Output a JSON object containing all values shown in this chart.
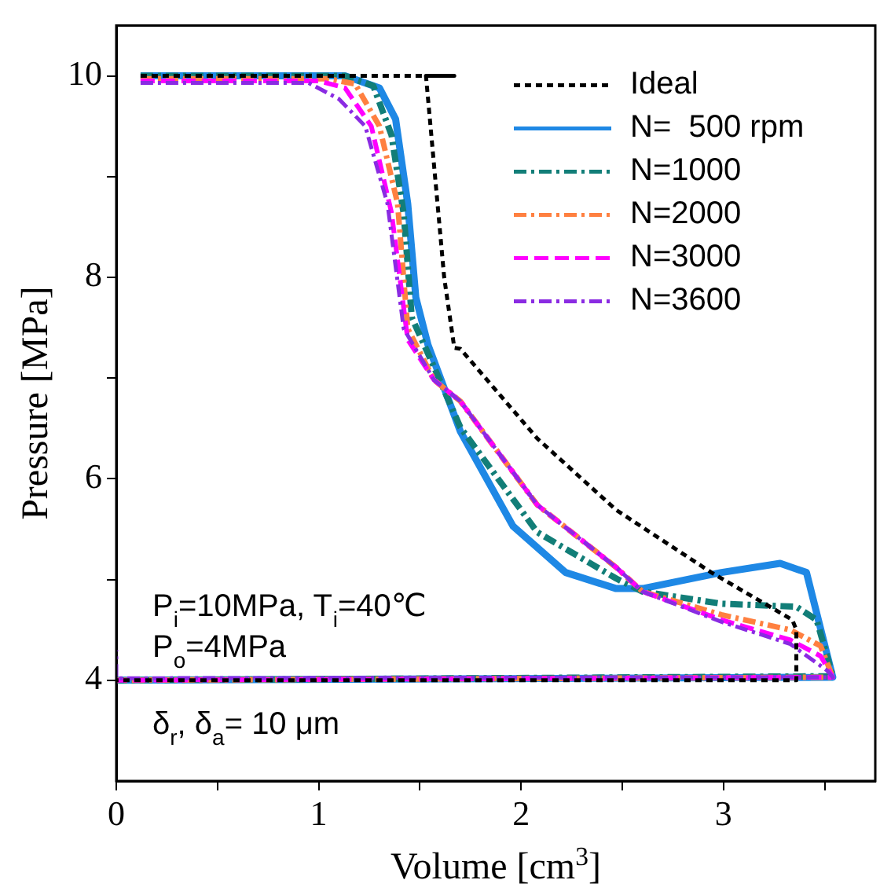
{
  "chart_data": {
    "type": "line",
    "xlabel": "Volume [cm$^{3}$]",
    "ylabel": "Pressure [MPa]",
    "xlim": [
      0,
      3.75
    ],
    "xticks": [
      0,
      {
        "value": 0.5,
        "label": null
      },
      1,
      {
        "value": 1.5,
        "label": null
      },
      2,
      {
        "value": 2.5,
        "label": null
      },
      3,
      {
        "value": 3.5,
        "label": null
      }
    ],
    "ylim": [
      3,
      10.5
    ],
    "yticks": [
      4,
      {
        "value": 5,
        "label": null
      },
      6,
      {
        "value": 7,
        "label": null
      },
      8,
      {
        "value": 9,
        "label": null
      },
      10
    ],
    "grid": false,
    "legend": "top right",
    "marker": "none",
    "annotations": [
      "P$_{i}$=10MPa, T$_{i}$=40℃",
      "P$_{o}$=4MPa",
      "δ$_{r}$, δ$_{a}$= 10 μm"
    ],
    "series": [
      {
        "name": "Ideal",
        "color": "#000000",
        "line_style": "dotted",
        "x": [
          0.12,
          1.53,
          1.67,
          1.53,
          1.62,
          1.67,
          1.7,
          2.08,
          2.47,
          2.94,
          3.34,
          3.36,
          3.36,
          0
        ],
        "values": [
          10,
          10,
          10,
          10,
          8,
          7.3,
          7.29,
          6.4,
          5.69,
          5.07,
          4.6,
          4.5,
          4,
          4
        ]
      },
      {
        "name": "N=  500 rpm",
        "color": "#1e88e5",
        "line_style": "solid",
        "x": [
          0.12,
          1.13,
          1.3,
          1.38,
          1.44,
          1.48,
          1.54,
          1.7,
          1.96,
          2.22,
          2.47,
          2.6,
          2.99,
          3.28,
          3.41,
          3.54,
          0
        ],
        "values": [
          10,
          10,
          9.88,
          9.57,
          8.73,
          7.8,
          7.33,
          6.47,
          5.53,
          5.07,
          4.91,
          4.91,
          5.07,
          5.16,
          5.07,
          4.03,
          4
        ]
      },
      {
        "name": "N=1000",
        "color": "#127e78",
        "line_style": "dashdot",
        "x": [
          0.12,
          1.13,
          1.27,
          1.36,
          1.42,
          1.46,
          1.55,
          1.7,
          2.08,
          2.47,
          2.6,
          2.99,
          3.36,
          3.46,
          3.54,
          0
        ],
        "values": [
          10,
          10,
          9.9,
          9.41,
          8.63,
          7.6,
          7.2,
          6.51,
          5.47,
          5.01,
          4.88,
          4.76,
          4.73,
          4.6,
          4.04,
          4
        ]
      },
      {
        "name": "N=2000",
        "color": "#ff8040",
        "line_style": "dashdot",
        "x": [
          0.12,
          1.05,
          1.18,
          1.3,
          1.39,
          1.44,
          1.57,
          1.7,
          2.08,
          2.47,
          2.6,
          2.99,
          3.33,
          3.48,
          3.54,
          0
        ],
        "values": [
          9.97,
          9.97,
          9.92,
          9.5,
          8.73,
          7.49,
          6.98,
          6.77,
          5.74,
          5.12,
          4.88,
          4.65,
          4.5,
          4.34,
          4.03,
          4
        ]
      },
      {
        "name": "N=3000",
        "color": "#ff00ff",
        "line_style": "dashed",
        "x": [
          0.12,
          1.0,
          1.13,
          1.26,
          1.36,
          1.44,
          1.57,
          1.7,
          2.08,
          2.47,
          2.6,
          2.99,
          3.33,
          3.48,
          3.54,
          0
        ],
        "values": [
          9.95,
          9.95,
          9.88,
          9.5,
          8.64,
          7.38,
          6.98,
          6.77,
          5.74,
          5.12,
          4.88,
          4.6,
          4.4,
          4.24,
          4.03,
          4
        ]
      },
      {
        "name": "N=3600",
        "color": "#8a2be2",
        "line_style": "dashdot",
        "x": [
          0.12,
          0.95,
          1.1,
          1.23,
          1.34,
          1.42,
          1.57,
          1.7,
          2.08,
          2.47,
          2.6,
          2.99,
          3.33,
          3.51,
          3.54,
          0,
          0
        ],
        "values": [
          9.93,
          9.93,
          9.77,
          9.5,
          8.73,
          7.49,
          6.98,
          6.77,
          5.74,
          5.12,
          4.88,
          4.58,
          4.36,
          4.1,
          4.03,
          4.02,
          4.3
        ]
      }
    ]
  }
}
